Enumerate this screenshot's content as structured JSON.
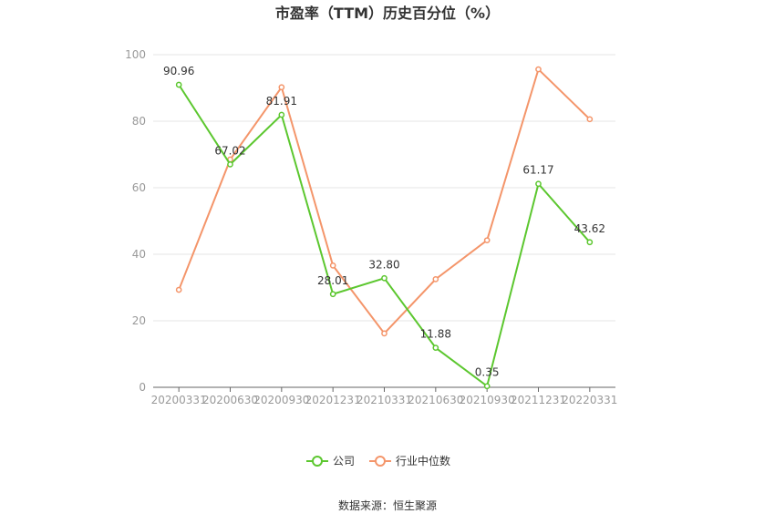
{
  "chart_data": {
    "type": "line",
    "title": "市盈率（TTM）历史百分位（%）",
    "categories": [
      "20200331",
      "20200630",
      "20200930",
      "20201231",
      "20210331",
      "20210630",
      "20210930",
      "20211231",
      "20220331"
    ],
    "ylim": [
      0,
      100
    ],
    "yticks": [
      0,
      20,
      40,
      60,
      80,
      100
    ],
    "grid": true,
    "legend_position": "bottom",
    "series": [
      {
        "name": "公司",
        "color": "#5cc72f",
        "values": [
          90.96,
          67.02,
          81.91,
          28.01,
          32.8,
          11.88,
          0.35,
          61.17,
          43.62
        ],
        "labels": [
          "90.96",
          "67.02",
          "81.91",
          "28.01",
          "32.80",
          "11.88",
          "0.35",
          "61.17",
          "43.62"
        ]
      },
      {
        "name": "行业中位数",
        "color": "#f4956a",
        "values": [
          29.3,
          68.5,
          90.2,
          36.6,
          16.2,
          32.5,
          44.2,
          95.6,
          80.6
        ]
      }
    ]
  },
  "source": "数据来源：恒生聚源"
}
